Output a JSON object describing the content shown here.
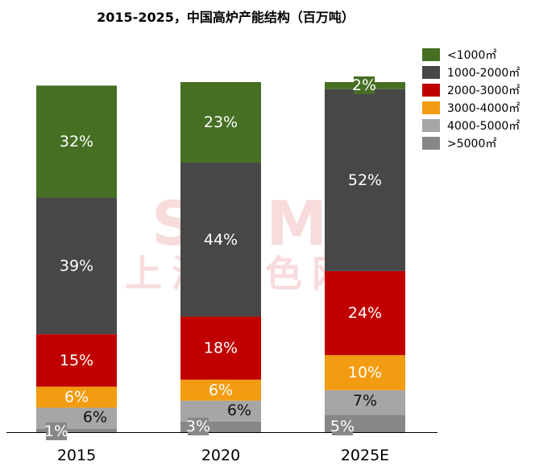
{
  "chart_data": {
    "type": "bar",
    "stacked": true,
    "title": "2015-2025，中国高炉产能结构（百万吨）",
    "categories": [
      "2015",
      "2020",
      "2025E"
    ],
    "series": [
      {
        "name": ">5000㎡",
        "color": "#878787",
        "values": [
          1,
          3,
          5
        ],
        "labels": [
          "1%",
          "3%",
          "5%"
        ]
      },
      {
        "name": "4000-5000㎡",
        "color": "#a6a6a6",
        "values": [
          6,
          6,
          7
        ],
        "labels": [
          "6%",
          "6%",
          "7%"
        ]
      },
      {
        "name": "3000-4000㎡",
        "color": "#f29c11",
        "values": [
          6,
          6,
          10
        ],
        "labels": [
          "6%",
          "6%",
          "10%"
        ]
      },
      {
        "name": "2000-3000㎡",
        "color": "#c00000",
        "values": [
          15,
          18,
          24
        ],
        "labels": [
          "15%",
          "18%",
          "24%"
        ]
      },
      {
        "name": "1000-2000㎡",
        "color": "#474747",
        "values": [
          39,
          44,
          52
        ],
        "labels": [
          "39%",
          "44%",
          "52%"
        ]
      },
      {
        "name": "<1000㎡",
        "color": "#466f24",
        "values": [
          32,
          23,
          2
        ],
        "labels": [
          "32%",
          "23%",
          "2%"
        ]
      }
    ],
    "legend_order": [
      "<1000㎡",
      "1000-2000㎡",
      "2000-3000㎡",
      "3000-4000㎡",
      "4000-5000㎡",
      ">5000㎡"
    ],
    "legend_position": "top-right",
    "grid": false
  },
  "watermark": {
    "main": "SMM",
    "sub": "上海有色网"
  }
}
